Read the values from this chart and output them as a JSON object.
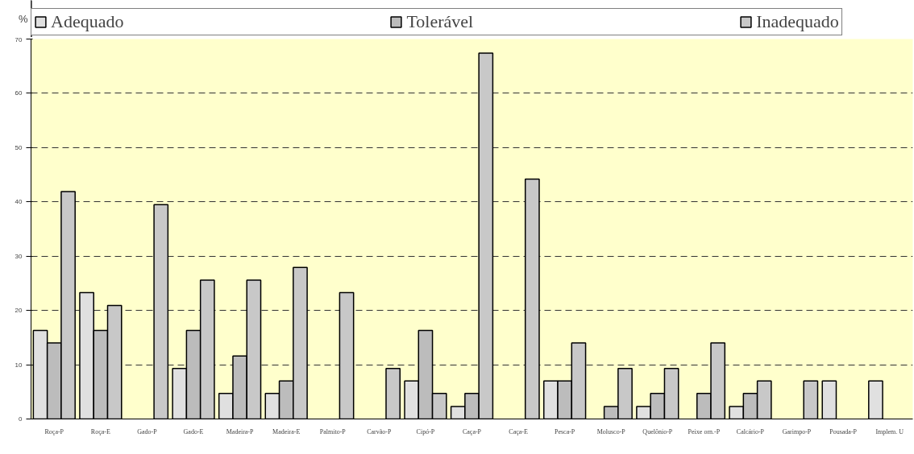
{
  "chart_data": {
    "type": "bar",
    "ylabel": "%",
    "categories": [
      "Roça-P",
      "Roça-E",
      "Gado-P",
      "Gado-E",
      "Madeira-P",
      "Madeira-E",
      "Palmito-P",
      "Carvão-P",
      "Cipó-P",
      "Caça-P",
      "Caça-E",
      "Pesca-P",
      "Molusco-P",
      "Quelônio-P",
      "Peixe orn.-P",
      "Calcário-P",
      "Garimpo-P",
      "Pousada-P",
      "Implem. U"
    ],
    "series": [
      {
        "name": "Adequado",
        "color": "#e0e0e0",
        "values": [
          16.3,
          23.3,
          null,
          9.3,
          4.7,
          4.7,
          null,
          null,
          7.0,
          2.3,
          null,
          7.0,
          null,
          2.3,
          null,
          2.3,
          null,
          7.0,
          7.0
        ]
      },
      {
        "name": "Tolerável",
        "color": "#bcbcbc",
        "values": [
          14.0,
          16.3,
          null,
          16.3,
          11.6,
          7.0,
          null,
          null,
          16.3,
          4.7,
          null,
          7.0,
          2.3,
          4.7,
          4.7,
          4.7,
          null,
          null,
          null
        ]
      },
      {
        "name": "Inadequado",
        "color": "#c8c8c8",
        "values": [
          41.9,
          20.9,
          39.5,
          25.6,
          25.6,
          27.9,
          23.3,
          9.3,
          4.7,
          67.4,
          44.2,
          14.0,
          9.3,
          9.3,
          14.0,
          7.0,
          7.0,
          null,
          null
        ]
      }
    ],
    "ylim": [
      0,
      70
    ],
    "yticks": [
      0,
      10,
      20,
      30,
      40,
      50,
      60,
      70
    ],
    "grid": "y",
    "legend": "top"
  }
}
